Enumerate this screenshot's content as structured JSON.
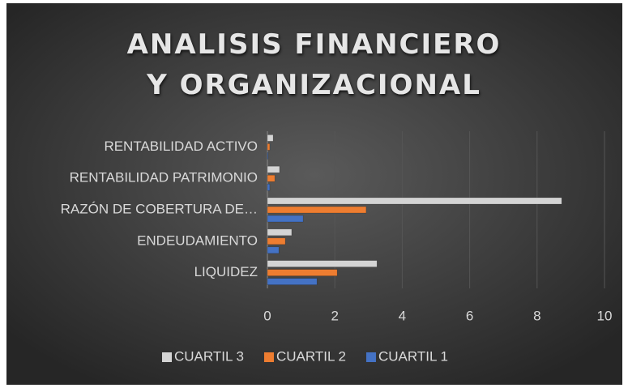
{
  "chart_data": {
    "type": "hbar",
    "title": "ANALISIS FINANCIERO Y ORGANIZACIONAL",
    "categories": [
      "LIQUIDEZ",
      "ENDEUDAMIENTO",
      "RAZÓN DE COBERTURA DE…",
      "RENTABILIDAD PATRIMONIO",
      "RENTABILIDAD ACTIVO"
    ],
    "series": [
      {
        "name": "CUARTIL 1",
        "color": "#4472c4",
        "values": [
          1.47,
          0.34,
          1.06,
          0.07,
          0.02
        ]
      },
      {
        "name": "CUARTIL 2",
        "color": "#ed7d31",
        "values": [
          2.07,
          0.53,
          2.93,
          0.22,
          0.07
        ]
      },
      {
        "name": "CUARTIL 3",
        "color": "#d4d4d4",
        "values": [
          3.25,
          0.72,
          8.73,
          0.36,
          0.17
        ]
      }
    ],
    "xlim": [
      0,
      10
    ],
    "xticks": [
      0,
      2,
      4,
      6,
      8,
      10
    ],
    "grid": true,
    "legend": "bottom"
  }
}
